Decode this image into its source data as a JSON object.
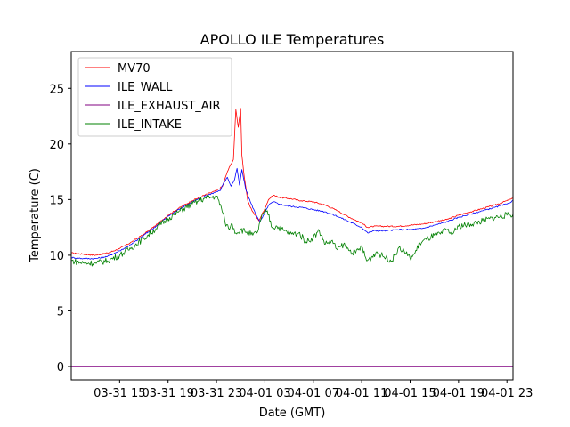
{
  "chart_data": {
    "type": "line",
    "title": "APOLLO ILE Temperatures",
    "xlabel": "Date (GMT)",
    "ylabel": "Temperature (C)",
    "x_unit": "hours since 03-31 11:00 GMT",
    "xlim": [
      0,
      36.5
    ],
    "ylim": [
      -1.2,
      28.3
    ],
    "x_ticks": [
      {
        "x": 4,
        "label": "03-31 15"
      },
      {
        "x": 8,
        "label": "03-31 19"
      },
      {
        "x": 12,
        "label": "03-31 23"
      },
      {
        "x": 16,
        "label": "04-01 03"
      },
      {
        "x": 20,
        "label": "04-01 07"
      },
      {
        "x": 24,
        "label": "04-01 11"
      },
      {
        "x": 28,
        "label": "04-01 15"
      },
      {
        "x": 32,
        "label": "04-01 19"
      },
      {
        "x": 36,
        "label": "04-01 23"
      }
    ],
    "y_ticks": [
      0,
      5,
      10,
      15,
      20,
      25
    ],
    "grid": false,
    "legend_position": "top-left",
    "series": [
      {
        "name": "MV70",
        "color": "#ff0000",
        "x": [
          0,
          1,
          2,
          3,
          4,
          5,
          6,
          7,
          8,
          9,
          10,
          11,
          12,
          12.5,
          12.9,
          13.2,
          13.4,
          13.6,
          13.8,
          14.0,
          14.1,
          14.3,
          14.5,
          14.6,
          15.0,
          15.5,
          16.0,
          16.3,
          16.7,
          17.2,
          18,
          19,
          20,
          21,
          22,
          23,
          24,
          24.5,
          25,
          26,
          27,
          28,
          29,
          30,
          31,
          32,
          33,
          34,
          35,
          36,
          36.5
        ],
        "y": [
          10.2,
          10.1,
          10.0,
          10.2,
          10.6,
          11.2,
          11.9,
          12.7,
          13.6,
          14.3,
          14.9,
          15.4,
          15.8,
          16.2,
          17.5,
          18.2,
          18.6,
          23.1,
          21.5,
          23.2,
          19.0,
          17.0,
          15.5,
          14.8,
          13.9,
          13.1,
          14.2,
          15.0,
          15.4,
          15.2,
          15.1,
          14.9,
          14.8,
          14.5,
          14.0,
          13.4,
          12.9,
          12.5,
          12.6,
          12.6,
          12.6,
          12.7,
          12.8,
          13.0,
          13.2,
          13.6,
          13.9,
          14.2,
          14.5,
          14.9,
          15.1
        ]
      },
      {
        "name": "ILE_WALL",
        "color": "#0000ff",
        "x": [
          0,
          1,
          2,
          3,
          4,
          5,
          6,
          7,
          8,
          9,
          10,
          11,
          12,
          12.3,
          12.6,
          12.9,
          13.2,
          13.5,
          13.7,
          13.9,
          14.1,
          14.4,
          14.8,
          15.2,
          15.6,
          16.0,
          16.3,
          16.7,
          17.2,
          18,
          19,
          20,
          21,
          22,
          23,
          24,
          24.5,
          25,
          26,
          27,
          28,
          29,
          30,
          31,
          32,
          33,
          34,
          35,
          36,
          36.5
        ],
        "y": [
          9.8,
          9.7,
          9.7,
          9.9,
          10.4,
          11.0,
          11.8,
          12.6,
          13.5,
          14.2,
          14.8,
          15.3,
          15.7,
          15.8,
          16.5,
          17.0,
          16.2,
          16.8,
          17.8,
          16.3,
          17.7,
          16.0,
          14.8,
          13.8,
          13.0,
          13.8,
          14.5,
          14.8,
          14.6,
          14.4,
          14.3,
          14.1,
          13.9,
          13.5,
          13.0,
          12.5,
          12.0,
          12.2,
          12.2,
          12.3,
          12.3,
          12.4,
          12.7,
          13.0,
          13.4,
          13.7,
          14.0,
          14.3,
          14.6,
          14.9
        ]
      },
      {
        "name": "ILE_EXHAUST_AIR",
        "color": "#800080",
        "x": [
          0,
          36.5
        ],
        "y": [
          0.05,
          0.05
        ]
      },
      {
        "name": "ILE_INTAKE",
        "color": "#008000",
        "x": [
          0,
          1,
          2,
          3,
          4,
          5,
          6,
          7,
          8,
          9,
          10,
          11,
          12,
          12.4,
          12.7,
          13.0,
          13.3,
          13.6,
          14.0,
          14.5,
          15.0,
          15.4,
          15.6,
          15.9,
          16.2,
          16.6,
          17.0,
          17.6,
          18.2,
          18.8,
          19.4,
          20.0,
          20.5,
          21.0,
          21.5,
          22.0,
          22.5,
          23.0,
          23.5,
          24.0,
          24.4,
          24.8,
          25.2,
          25.6,
          26.0,
          26.5,
          27.0,
          27.5,
          28.0,
          28.4,
          28.8,
          29.5,
          30.0,
          30.5,
          31.0,
          31.5,
          32.0,
          33.0,
          34.0,
          35.0,
          36.0,
          36.5
        ],
        "y": [
          9.5,
          9.3,
          9.3,
          9.5,
          10.0,
          10.7,
          11.5,
          12.4,
          13.3,
          14.0,
          14.6,
          15.1,
          15.3,
          14.3,
          13.0,
          12.4,
          12.8,
          12.0,
          12.3,
          12.1,
          11.8,
          12.1,
          13.0,
          13.8,
          14.0,
          12.5,
          12.6,
          12.2,
          11.9,
          12.0,
          11.2,
          11.6,
          12.2,
          11.0,
          11.3,
          10.5,
          11.0,
          10.4,
          10.2,
          10.8,
          9.5,
          9.8,
          10.3,
          10.0,
          9.8,
          9.5,
          10.6,
          10.4,
          9.7,
          10.2,
          11.1,
          11.5,
          11.8,
          11.9,
          12.3,
          11.9,
          12.6,
          12.8,
          13.1,
          13.4,
          13.6,
          13.7
        ]
      }
    ]
  }
}
